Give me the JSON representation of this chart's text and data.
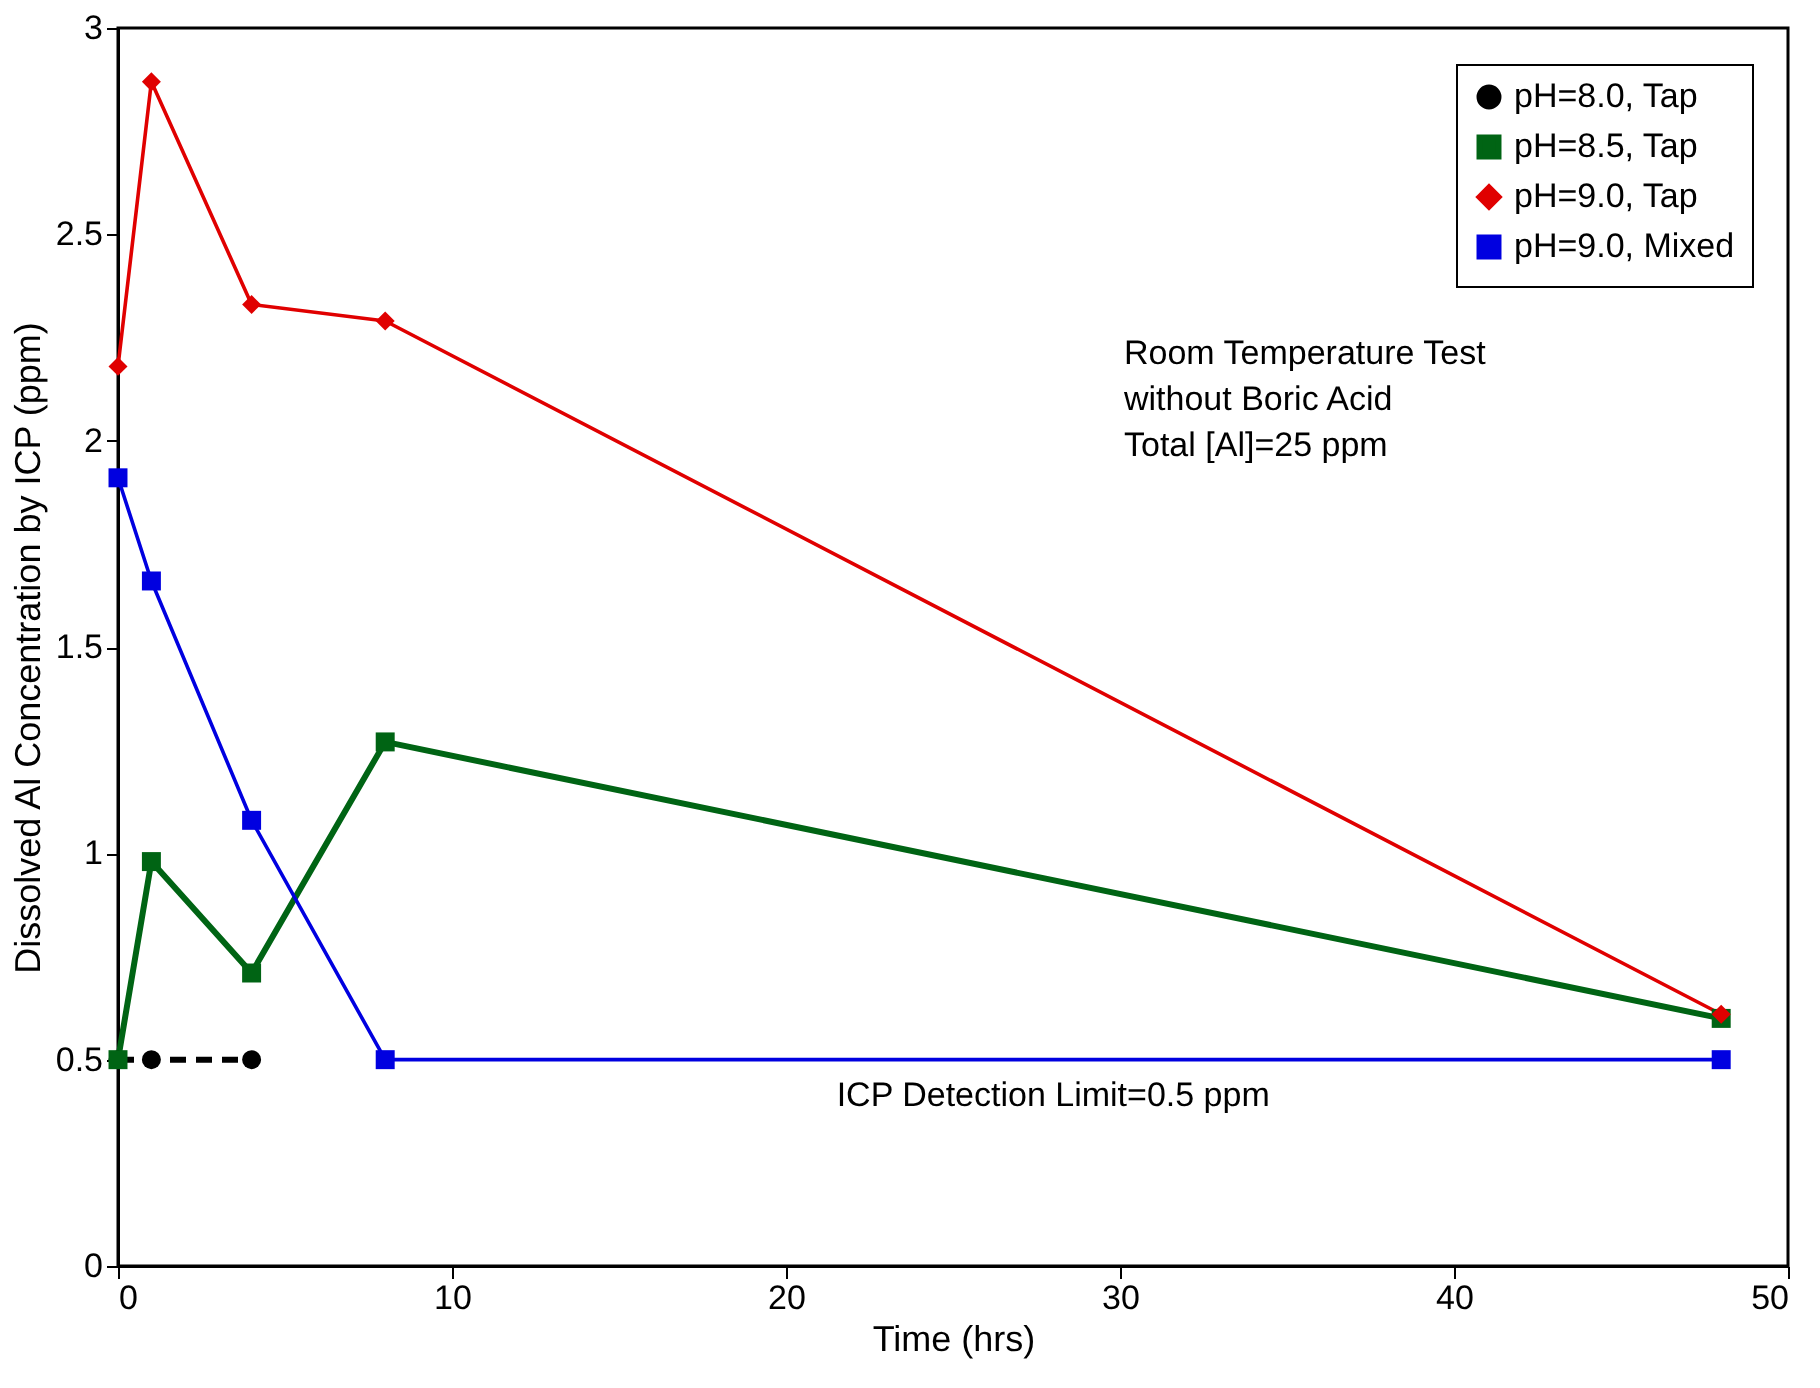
{
  "chart_data": {
    "type": "line",
    "xlabel": "Time (hrs)",
    "ylabel": "Dissolved Al Concentration by ICP (ppm)",
    "xlim": [
      0,
      50
    ],
    "xticks": [
      0,
      10,
      20,
      30,
      40,
      50
    ],
    "ylim": [
      0,
      3
    ],
    "yticks": [
      0,
      0.5,
      1,
      1.5,
      2,
      2.5,
      3
    ],
    "grid": false,
    "legend": "top right",
    "series": [
      {
        "name": "pH=8.0, Tap",
        "color": "#000000",
        "marker": "circle",
        "line_style": "dashed",
        "x": [
          0,
          1,
          4
        ],
        "values": [
          0.5,
          0.5,
          0.5
        ]
      },
      {
        "name": "pH=8.5, Tap",
        "color": "#006414",
        "marker": "square",
        "line_style": "solid",
        "x": [
          0,
          1,
          4,
          8,
          48
        ],
        "values": [
          0.5,
          0.98,
          0.71,
          1.27,
          0.6
        ]
      },
      {
        "name": "pH=9.0, Tap",
        "color": "#e00000",
        "marker": "diamond",
        "line_style": "solid",
        "x": [
          0,
          1,
          4,
          8,
          48
        ],
        "values": [
          2.18,
          2.87,
          2.33,
          2.29,
          0.61
        ]
      },
      {
        "name": "pH=9.0, Mixed",
        "color": "#0000e0",
        "marker": "square",
        "line_style": "solid",
        "x": [
          0,
          1,
          4,
          8,
          48
        ],
        "values": [
          1.91,
          1.66,
          1.08,
          0.5,
          0.5
        ]
      }
    ],
    "annotations": [
      "Room Temperature Test",
      "without Boric Acid",
      "Total [Al]=25 ppm",
      {
        "text": "ICP Detection Limit=0.5 ppm",
        "x": 28,
        "y": 0.5
      }
    ]
  }
}
